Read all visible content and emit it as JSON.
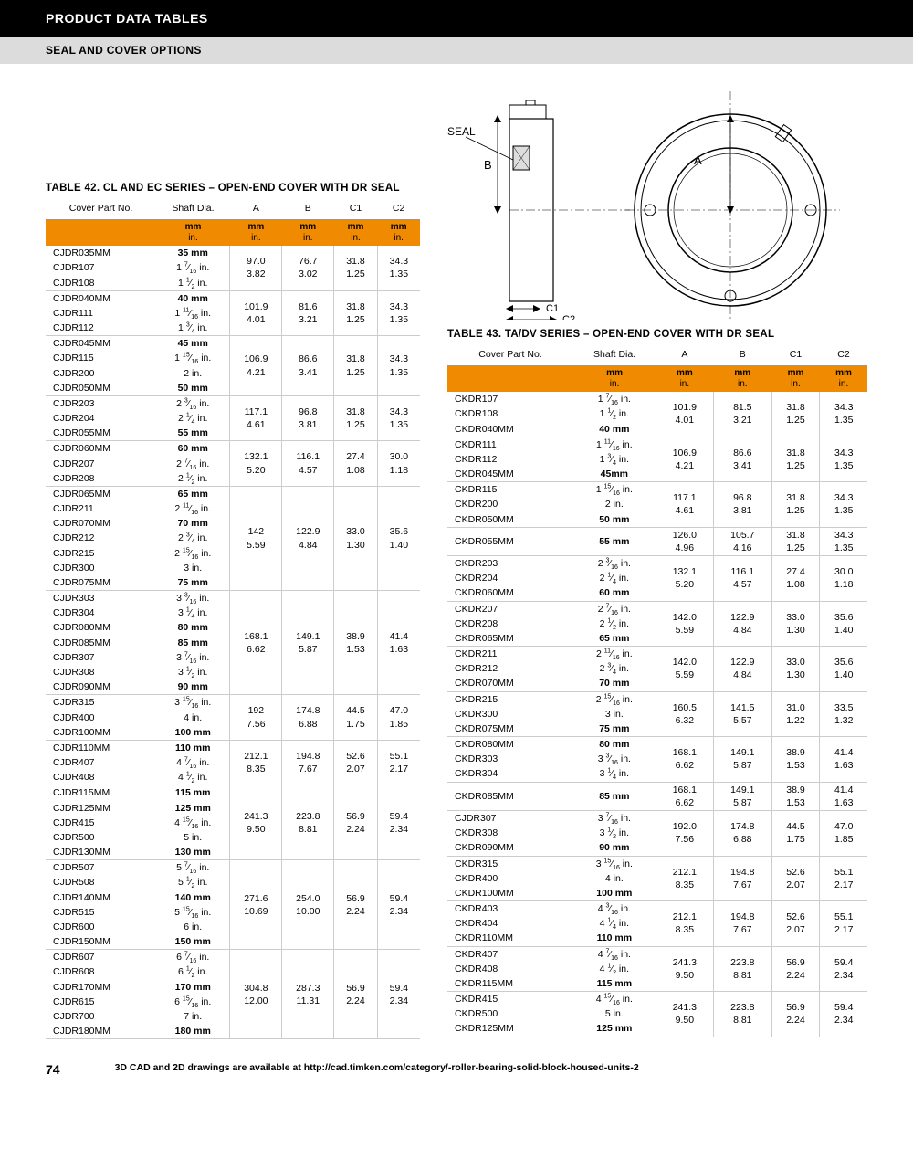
{
  "header1": "PRODUCT DATA TABLES",
  "header2": "SEAL AND COVER OPTIONS",
  "diagram": {
    "seal_label": "SEAL",
    "labels": {
      "A": "A",
      "B": "B",
      "C1": "C1",
      "C2": "C2"
    }
  },
  "table42": {
    "title": "TABLE 42. CL AND EC SERIES – OPEN-END COVER WITH DR SEAL",
    "columns": [
      "Cover Part No.",
      "Shaft Dia.",
      "A",
      "B",
      "C1",
      "C2"
    ],
    "unit_top": "mm",
    "unit_bot": "in.",
    "groups": [
      {
        "rows": [
          [
            "CJDR035MM",
            "35 mm",
            1
          ],
          [
            "CJDR107",
            "1 7/16 in.",
            0
          ],
          [
            "CJDR108",
            "1 1/2 in.",
            0
          ]
        ],
        "vals": [
          [
            "97.0",
            "76.7",
            "31.8",
            "34.3"
          ],
          [
            "3.82",
            "3.02",
            "1.25",
            "1.35"
          ]
        ]
      },
      {
        "rows": [
          [
            "CJDR040MM",
            "40 mm",
            1
          ],
          [
            "CJDR111",
            "1 11/16 in.",
            0
          ],
          [
            "CJDR112",
            "1 3/4 in.",
            0
          ]
        ],
        "vals": [
          [
            "101.9",
            "81.6",
            "31.8",
            "34.3"
          ],
          [
            "4.01",
            "3.21",
            "1.25",
            "1.35"
          ]
        ]
      },
      {
        "rows": [
          [
            "CJDR045MM",
            "45 mm",
            1
          ],
          [
            "CJDR115",
            "1 15/16 in.",
            0
          ],
          [
            "CJDR200",
            "2 in.",
            0
          ],
          [
            "CJDR050MM",
            "50 mm",
            1
          ]
        ],
        "vals": [
          [
            "106.9",
            "86.6",
            "31.8",
            "34.3"
          ],
          [
            "4.21",
            "3.41",
            "1.25",
            "1.35"
          ]
        ]
      },
      {
        "rows": [
          [
            "CJDR203",
            "2 3/16 in.",
            0
          ],
          [
            "CJDR204",
            "2 1/4 in.",
            0
          ],
          [
            "CJDR055MM",
            "55 mm",
            1
          ]
        ],
        "vals": [
          [
            "117.1",
            "96.8",
            "31.8",
            "34.3"
          ],
          [
            "4.61",
            "3.81",
            "1.25",
            "1.35"
          ]
        ]
      },
      {
        "rows": [
          [
            "CJDR060MM",
            "60 mm",
            1
          ],
          [
            "CJDR207",
            "2 7/16 in.",
            0
          ],
          [
            "CJDR208",
            "2 1/2 in.",
            0
          ]
        ],
        "vals": [
          [
            "132.1",
            "116.1",
            "27.4",
            "30.0"
          ],
          [
            "5.20",
            "4.57",
            "1.08",
            "1.18"
          ]
        ]
      },
      {
        "rows": [
          [
            "CJDR065MM",
            "65 mm",
            1
          ],
          [
            "CJDR211",
            "2 11/16 in.",
            0
          ],
          [
            "CJDR070MM",
            "70 mm",
            1
          ],
          [
            "CJDR212",
            "2 3/4 in.",
            0
          ],
          [
            "CJDR215",
            "2 15/16 in.",
            0
          ],
          [
            "CJDR300",
            "3 in.",
            0
          ],
          [
            "CJDR075MM",
            "75 mm",
            1
          ]
        ],
        "vals": [
          [
            "142",
            "122.9",
            "33.0",
            "35.6"
          ],
          [
            "5.59",
            "4.84",
            "1.30",
            "1.40"
          ]
        ]
      },
      {
        "rows": [
          [
            "CJDR303",
            "3 3/16 in.",
            0
          ],
          [
            "CJDR304",
            "3 1/4 in.",
            0
          ],
          [
            "CJDR080MM",
            "80 mm",
            1
          ],
          [
            "CJDR085MM",
            "85 mm",
            1
          ],
          [
            "CJDR307",
            "3 7/16 in.",
            0
          ],
          [
            "CJDR308",
            "3 1/2 in.",
            0
          ],
          [
            "CJDR090MM",
            "90 mm",
            1
          ]
        ],
        "vals": [
          [
            "168.1",
            "149.1",
            "38.9",
            "41.4"
          ],
          [
            "6.62",
            "5.87",
            "1.53",
            "1.63"
          ]
        ]
      },
      {
        "rows": [
          [
            "CJDR315",
            "3 15/16 in.",
            0
          ],
          [
            "CJDR400",
            "4 in.",
            0
          ],
          [
            "CJDR100MM",
            "100 mm",
            1
          ]
        ],
        "vals": [
          [
            "192",
            "174.8",
            "44.5",
            "47.0"
          ],
          [
            "7.56",
            "6.88",
            "1.75",
            "1.85"
          ]
        ]
      },
      {
        "rows": [
          [
            "CJDR110MM",
            "110 mm",
            1
          ],
          [
            "CJDR407",
            "4 7/16 in.",
            0
          ],
          [
            "CJDR408",
            "4 1/2 in.",
            0
          ]
        ],
        "vals": [
          [
            "212.1",
            "194.8",
            "52.6",
            "55.1"
          ],
          [
            "8.35",
            "7.67",
            "2.07",
            "2.17"
          ]
        ]
      },
      {
        "rows": [
          [
            "CJDR115MM",
            "115 mm",
            1
          ],
          [
            "CJDR125MM",
            "125 mm",
            1
          ],
          [
            "CJDR415",
            "4 15/16 in.",
            0
          ],
          [
            "CJDR500",
            "5 in.",
            0
          ],
          [
            "CJDR130MM",
            "130 mm",
            1
          ]
        ],
        "vals": [
          [
            "241.3",
            "223.8",
            "56.9",
            "59.4"
          ],
          [
            "9.50",
            "8.81",
            "2.24",
            "2.34"
          ]
        ]
      },
      {
        "rows": [
          [
            "CJDR507",
            "5 7/16 in.",
            0
          ],
          [
            "CJDR508",
            "5 1/2 in.",
            0
          ],
          [
            "CJDR140MM",
            "140 mm",
            1
          ],
          [
            "CJDR515",
            "5 15/16 in.",
            0
          ],
          [
            "CJDR600",
            "6 in.",
            0
          ],
          [
            "CJDR150MM",
            "150 mm",
            1
          ]
        ],
        "vals": [
          [
            "271.6",
            "254.0",
            "56.9",
            "59.4"
          ],
          [
            "10.69",
            "10.00",
            "2.24",
            "2.34"
          ]
        ]
      },
      {
        "rows": [
          [
            "CJDR607",
            "6 7/16 in.",
            0
          ],
          [
            "CJDR608",
            "6 1/2 in.",
            0
          ],
          [
            "CJDR170MM",
            "170 mm",
            1
          ],
          [
            "CJDR615",
            "6 15/16 in.",
            0
          ],
          [
            "CJDR700",
            "7 in.",
            0
          ],
          [
            "CJDR180MM",
            "180 mm",
            1
          ]
        ],
        "vals": [
          [
            "304.8",
            "287.3",
            "56.9",
            "59.4"
          ],
          [
            "12.00",
            "11.31",
            "2.24",
            "2.34"
          ]
        ]
      }
    ]
  },
  "table43": {
    "title": "TABLE 43. TA/DV SERIES – OPEN-END COVER WITH DR SEAL",
    "columns": [
      "Cover Part No.",
      "Shaft Dia.",
      "A",
      "B",
      "C1",
      "C2"
    ],
    "unit_top": "mm",
    "unit_bot": "in.",
    "groups": [
      {
        "rows": [
          [
            "CKDR107",
            "1 7/16 in.",
            0
          ],
          [
            "CKDR108",
            "1 1/2 in.",
            0
          ],
          [
            "CKDR040MM",
            "40 mm",
            1
          ]
        ],
        "vals": [
          [
            "101.9",
            "81.5",
            "31.8",
            "34.3"
          ],
          [
            "4.01",
            "3.21",
            "1.25",
            "1.35"
          ]
        ]
      },
      {
        "rows": [
          [
            "CKDR111",
            "1 11/16 in.",
            0
          ],
          [
            "CKDR112",
            "1 3/4 in.",
            0
          ],
          [
            "CKDR045MM",
            "45mm",
            1
          ]
        ],
        "vals": [
          [
            "106.9",
            "86.6",
            "31.8",
            "34.3"
          ],
          [
            "4.21",
            "3.41",
            "1.25",
            "1.35"
          ]
        ]
      },
      {
        "rows": [
          [
            "CKDR115",
            "1 15/16 in.",
            0
          ],
          [
            "CKDR200",
            "2 in.",
            0
          ],
          [
            "CKDR050MM",
            "50 mm",
            1
          ]
        ],
        "vals": [
          [
            "117.1",
            "96.8",
            "31.8",
            "34.3"
          ],
          [
            "4.61",
            "3.81",
            "1.25",
            "1.35"
          ]
        ]
      },
      {
        "rows": [
          [
            "CKDR055MM",
            "55 mm",
            1
          ]
        ],
        "vals": [
          [
            "126.0",
            "105.7",
            "31.8",
            "34.3"
          ],
          [
            "4.96",
            "4.16",
            "1.25",
            "1.35"
          ]
        ]
      },
      {
        "rows": [
          [
            "CKDR203",
            "2 3/16 in.",
            0
          ],
          [
            "CKDR204",
            "2 1/4 in.",
            0
          ],
          [
            "CKDR060MM",
            "60 mm",
            1
          ]
        ],
        "vals": [
          [
            "132.1",
            "116.1",
            "27.4",
            "30.0"
          ],
          [
            "5.20",
            "4.57",
            "1.08",
            "1.18"
          ]
        ]
      },
      {
        "rows": [
          [
            "CKDR207",
            "2 7/16 in.",
            0
          ],
          [
            "CKDR208",
            "2 1/2 in.",
            0
          ],
          [
            "CKDR065MM",
            "65 mm",
            1
          ]
        ],
        "vals": [
          [
            "142.0",
            "122.9",
            "33.0",
            "35.6"
          ],
          [
            "5.59",
            "4.84",
            "1.30",
            "1.40"
          ]
        ]
      },
      {
        "rows": [
          [
            "CKDR211",
            "2 11/16 in.",
            0
          ],
          [
            "CKDR212",
            "2 3/4 in.",
            0
          ],
          [
            "CKDR070MM",
            "70 mm",
            1
          ]
        ],
        "vals": [
          [
            "142.0",
            "122.9",
            "33.0",
            "35.6"
          ],
          [
            "5.59",
            "4.84",
            "1.30",
            "1.40"
          ]
        ]
      },
      {
        "rows": [
          [
            "CKDR215",
            "2 15/16 in.",
            0
          ],
          [
            "CKDR300",
            "3 in.",
            0
          ],
          [
            "CKDR075MM",
            "75 mm",
            1
          ]
        ],
        "vals": [
          [
            "160.5",
            "141.5",
            "31.0",
            "33.5"
          ],
          [
            "6.32",
            "5.57",
            "1.22",
            "1.32"
          ]
        ]
      },
      {
        "rows": [
          [
            "CKDR080MM",
            "80 mm",
            1
          ],
          [
            "CKDR303",
            "3 3/16 in.",
            0
          ],
          [
            "CKDR304",
            "3 1/4 in.",
            0
          ]
        ],
        "vals": [
          [
            "168.1",
            "149.1",
            "38.9",
            "41.4"
          ],
          [
            "6.62",
            "5.87",
            "1.53",
            "1.63"
          ]
        ]
      },
      {
        "rows": [
          [
            "CKDR085MM",
            "85 mm",
            1
          ]
        ],
        "vals": [
          [
            "168.1",
            "149.1",
            "38.9",
            "41.4"
          ],
          [
            "6.62",
            "5.87",
            "1.53",
            "1.63"
          ]
        ]
      },
      {
        "rows": [
          [
            "CJDR307",
            "3 7/16 in.",
            0
          ],
          [
            "CKDR308",
            "3 1/2 in.",
            0
          ],
          [
            "CKDR090MM",
            "90 mm",
            1
          ]
        ],
        "vals": [
          [
            "192.0",
            "174.8",
            "44.5",
            "47.0"
          ],
          [
            "7.56",
            "6.88",
            "1.75",
            "1.85"
          ]
        ]
      },
      {
        "rows": [
          [
            "CKDR315",
            "3 15/16 in.",
            0
          ],
          [
            "CKDR400",
            "4 in.",
            0
          ],
          [
            "CKDR100MM",
            "100 mm",
            1
          ]
        ],
        "vals": [
          [
            "212.1",
            "194.8",
            "52.6",
            "55.1"
          ],
          [
            "8.35",
            "7.67",
            "2.07",
            "2.17"
          ]
        ]
      },
      {
        "rows": [
          [
            "CKDR403",
            "4 3/16 in.",
            0
          ],
          [
            "CKDR404",
            "4 1/4 in.",
            0
          ],
          [
            "CKDR110MM",
            "110 mm",
            1
          ]
        ],
        "vals": [
          [
            "212.1",
            "194.8",
            "52.6",
            "55.1"
          ],
          [
            "8.35",
            "7.67",
            "2.07",
            "2.17"
          ]
        ]
      },
      {
        "rows": [
          [
            "CKDR407",
            "4 7/16 in.",
            0
          ],
          [
            "CKDR408",
            "4 1/2 in.",
            0
          ],
          [
            "CKDR115MM",
            "115 mm",
            1
          ]
        ],
        "vals": [
          [
            "241.3",
            "223.8",
            "56.9",
            "59.4"
          ],
          [
            "9.50",
            "8.81",
            "2.24",
            "2.34"
          ]
        ]
      },
      {
        "rows": [
          [
            "CKDR415",
            "4 15/16 in.",
            0
          ],
          [
            "CKDR500",
            "5 in.",
            0
          ],
          [
            "CKDR125MM",
            "125 mm",
            1
          ]
        ],
        "vals": [
          [
            "241.3",
            "223.8",
            "56.9",
            "59.4"
          ],
          [
            "9.50",
            "8.81",
            "2.24",
            "2.34"
          ]
        ]
      }
    ]
  },
  "footer": {
    "page": "74",
    "note": "3D CAD and 2D drawings are available at http://cad.timken.com/category/-roller-bearing-solid-block-housed-units-2"
  },
  "colors": {
    "orange": "#f08a00",
    "black": "#000000",
    "gray_hdr": "#dcdcdc",
    "rule": "#cccccc"
  }
}
